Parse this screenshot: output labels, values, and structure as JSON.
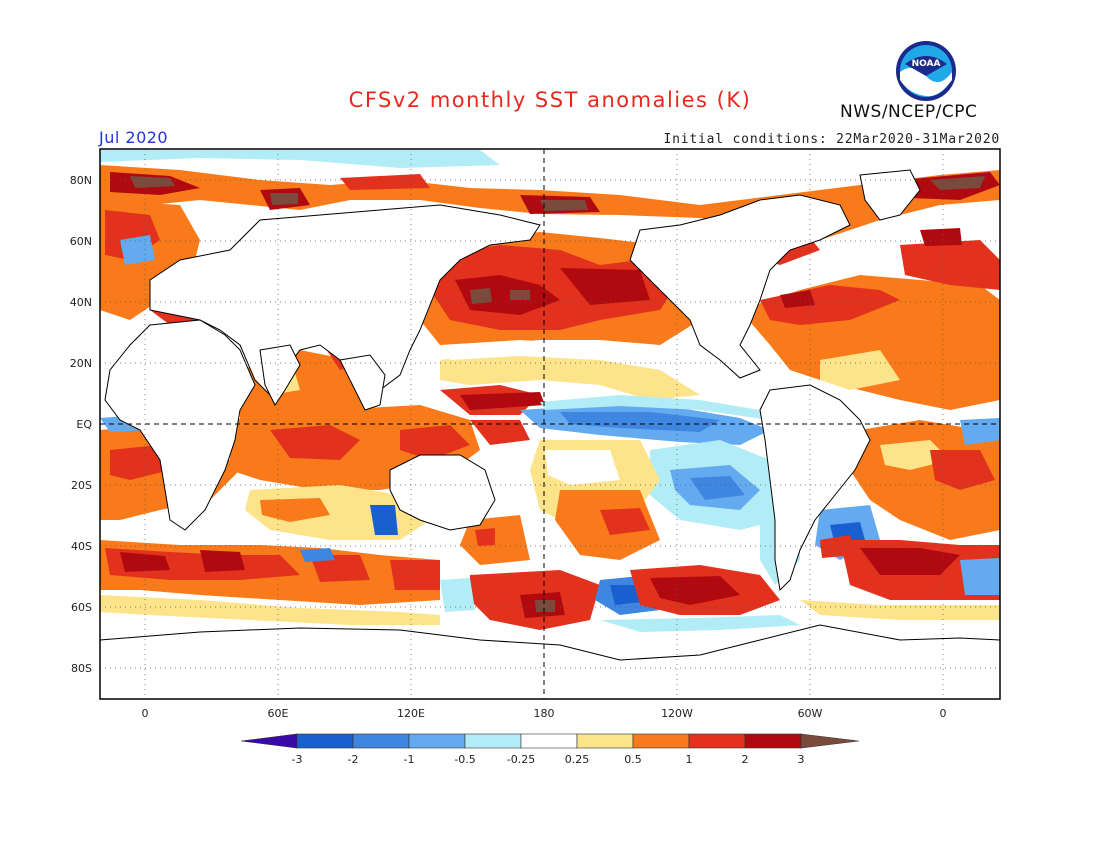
{
  "title": "CFSv2 monthly SST anomalies (K)",
  "valid_month": "Jul 2020",
  "initial_conditions": "Initial conditions: 22Mar2020-31Mar2020",
  "agency": "NWS/NCEP/CPC",
  "logo_text": "NOAA",
  "lat_labels": [
    "80N",
    "60N",
    "40N",
    "20N",
    "EQ",
    "20S",
    "40S",
    "60S",
    "80S"
  ],
  "lon_labels": [
    "0",
    "60E",
    "120E",
    "180",
    "120W",
    "60W",
    "0"
  ],
  "colorbar": {
    "levels": [
      "-3",
      "-2",
      "-1",
      "-0.5",
      "-0.25",
      "0.25",
      "0.5",
      "1",
      "2",
      "3"
    ],
    "colors": [
      "#3a0aa8",
      "#1a5fd0",
      "#3f86e0",
      "#63aaf0",
      "#b2ecf6",
      "#ffffff",
      "#fde38a",
      "#f97a1a",
      "#e2321d",
      "#b00a10",
      "#7a4a3c"
    ]
  }
}
